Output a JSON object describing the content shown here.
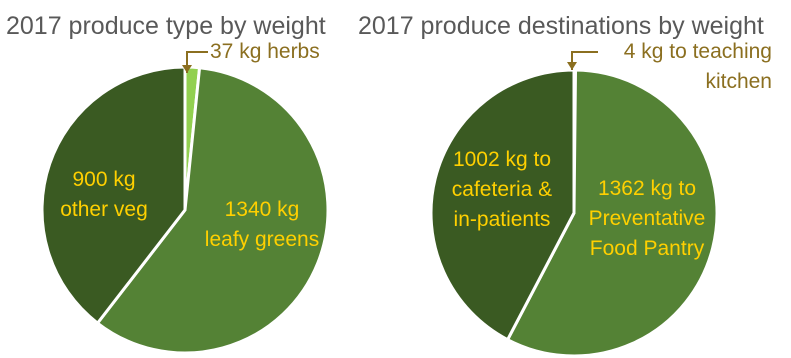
{
  "colors": {
    "dark_green": "#3a5a22",
    "mid_green": "#548235",
    "light_green": "#92d050",
    "label_yellow": "#ffd000",
    "label_brown": "#8b6f20",
    "title_gray": "#595959"
  },
  "chart_data": [
    {
      "type": "pie",
      "title": "2017 produce type by weight",
      "slices": [
        {
          "value": 37,
          "unit": "kg",
          "label_lines": [
            "37 kg herbs"
          ],
          "color": "#92d050"
        },
        {
          "value": 1340,
          "unit": "kg",
          "label_lines": [
            "1340 kg",
            "leafy greens"
          ],
          "color": "#548235"
        },
        {
          "value": 900,
          "unit": "kg",
          "label_lines": [
            "900 kg",
            "other veg"
          ],
          "color": "#3a5a22"
        }
      ]
    },
    {
      "type": "pie",
      "title": "2017 produce destinations by weight",
      "slices": [
        {
          "value": 4,
          "unit": "kg",
          "label_lines": [
            "4 kg to teaching",
            "kitchen"
          ],
          "color": "#92d050"
        },
        {
          "value": 1362,
          "unit": "kg",
          "label_lines": [
            "1362 kg to",
            "Preventative",
            "Food Pantry"
          ],
          "color": "#548235"
        },
        {
          "value": 1002,
          "unit": "kg",
          "label_lines": [
            "1002 kg to",
            "cafeteria &",
            "in-patients"
          ],
          "color": "#3a5a22"
        }
      ]
    }
  ]
}
